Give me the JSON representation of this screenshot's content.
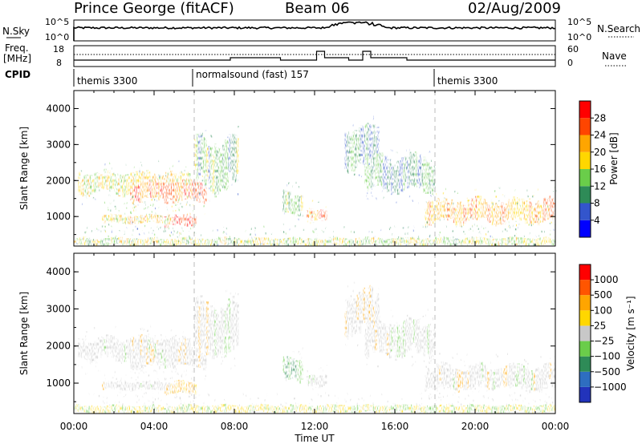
{
  "header": {
    "title": "Prince George (fitACF)",
    "beam": "Beam 06",
    "date": "02/Aug/2009"
  },
  "nsky_panel": {
    "left_label": "N.Sky",
    "right_label": "N.Search",
    "left_ticks": [
      "10^5",
      "10^0"
    ],
    "right_ticks": [
      "10^5",
      "10^0"
    ]
  },
  "freq_panel": {
    "left_label_line1": "Freq.",
    "left_label_line2": "[MHz]",
    "right_label": "Nave",
    "left_ticks": [
      "18",
      "8"
    ],
    "right_ticks": [
      "60",
      "0"
    ]
  },
  "cpid": {
    "label": "CPID",
    "segments": [
      {
        "name": "themis 3300",
        "start_hour": 0,
        "end_hour": 6
      },
      {
        "name": "normalsound (fast) 157",
        "start_hour": 6,
        "end_hour": 18
      },
      {
        "name": "themis 3300",
        "start_hour": 18,
        "end_hour": 24
      }
    ]
  },
  "x_axis": {
    "label": "Time UT",
    "ticks": [
      "00:00",
      "04:00",
      "08:00",
      "12:00",
      "16:00",
      "20:00",
      "00:00"
    ]
  },
  "power_panel": {
    "ylabel": "Slant Range [km]",
    "yticks": [
      "1000",
      "2000",
      "3000",
      "4000"
    ],
    "colorbar_label": "Power [dB]",
    "colorbar_ticks": [
      "4",
      "8",
      "12",
      "16",
      "20",
      "24",
      "28"
    ],
    "colors": [
      "#0000ff",
      "#3355cc",
      "#2e8b57",
      "#6acd4a",
      "#ffd700",
      "#ffa500",
      "#ff4500",
      "#ff0000"
    ]
  },
  "velocity_panel": {
    "ylabel": "Slant Range [km]",
    "yticks": [
      "1000",
      "2000",
      "3000",
      "4000"
    ],
    "colorbar_label": "Velocity [m s⁻¹]",
    "colorbar_ticks": [
      "1000",
      "500",
      "100",
      "25",
      "−25",
      "−100",
      "−500",
      "−1000"
    ],
    "colors": [
      "#2233bb",
      "#2e6ec0",
      "#2e8b57",
      "#6acd4a",
      "#c8c8c8",
      "#ffd700",
      "#ffa500",
      "#ff5500",
      "#ff0000"
    ]
  },
  "chart_data": {
    "type": "heatmap",
    "x_range_hours": [
      0,
      24
    ],
    "y_range_km": [
      180,
      4500
    ],
    "ground_scatter_color": "#c8c8c8",
    "range_time_blobs": [
      {
        "t": [
          0.2,
          5.8
        ],
        "r": [
          1600,
          2250
        ],
        "power": 16
      },
      {
        "t": [
          2.8,
          6.6
        ],
        "r": [
          1400,
          2000
        ],
        "power": 24
      },
      {
        "t": [
          4.5,
          6.1
        ],
        "r": [
          700,
          1050
        ],
        "power": 26
      },
      {
        "t": [
          1.4,
          4.8
        ],
        "r": [
          800,
          1050
        ],
        "power": 18
      },
      {
        "t": [
          6.0,
          8.2
        ],
        "r": [
          1700,
          3200
        ],
        "power": 10
      },
      {
        "t": [
          10.4,
          11.4
        ],
        "r": [
          1050,
          1700
        ],
        "power": 12
      },
      {
        "t": [
          11.6,
          12.6
        ],
        "r": [
          900,
          1250
        ],
        "power": 22
      },
      {
        "t": [
          13.5,
          15.2
        ],
        "r": [
          2300,
          3500
        ],
        "power": 8
      },
      {
        "t": [
          17.5,
          24.0
        ],
        "r": [
          800,
          1500
        ],
        "power": 20
      },
      {
        "t": [
          14.5,
          18.0
        ],
        "r": [
          1700,
          2700
        ],
        "power": 8
      },
      {
        "t": [
          0.0,
          24.0
        ],
        "r": [
          180,
          420
        ],
        "power": 14
      }
    ]
  }
}
